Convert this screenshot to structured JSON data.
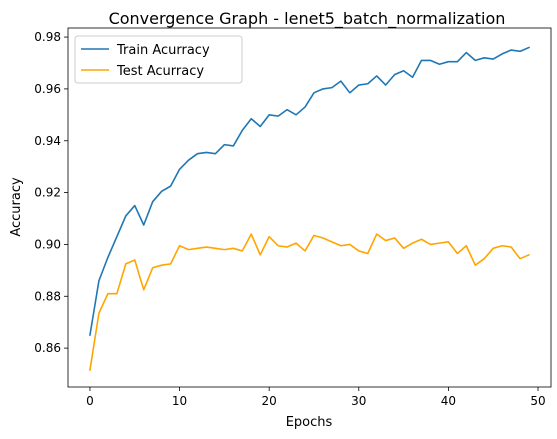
{
  "chart_data": {
    "type": "line",
    "title": "Convergence Graph - lenet5_batch_normalization",
    "xlabel": "Epochs",
    "ylabel": "Accuracy",
    "xlim": [
      -2.45,
      51.45
    ],
    "ylim": [
      0.845,
      0.9835
    ],
    "xticks": [
      0,
      10,
      20,
      30,
      40,
      50
    ],
    "yticks": [
      0.86,
      0.88,
      0.9,
      0.92,
      0.94,
      0.96,
      0.98
    ],
    "ytick_labels": [
      "0.86",
      "0.88",
      "0.90",
      "0.92",
      "0.94",
      "0.96",
      "0.98"
    ],
    "legend_position": "upper-left",
    "grid": false,
    "x": [
      0,
      1,
      2,
      3,
      4,
      5,
      6,
      7,
      8,
      9,
      10,
      11,
      12,
      13,
      14,
      15,
      16,
      17,
      18,
      19,
      20,
      21,
      22,
      23,
      24,
      25,
      26,
      27,
      28,
      29,
      30,
      31,
      32,
      33,
      34,
      35,
      36,
      37,
      38,
      39,
      40,
      41,
      42,
      43,
      44,
      45,
      46,
      47,
      48,
      49
    ],
    "series": [
      {
        "name": "Train Acurracy",
        "color": "#1f77b4",
        "values": [
          0.865,
          0.886,
          0.895,
          0.903,
          0.911,
          0.915,
          0.9075,
          0.9165,
          0.9205,
          0.9225,
          0.929,
          0.9325,
          0.935,
          0.9355,
          0.935,
          0.9385,
          0.938,
          0.944,
          0.9485,
          0.9455,
          0.95,
          0.9495,
          0.952,
          0.95,
          0.953,
          0.9585,
          0.96,
          0.9605,
          0.963,
          0.9585,
          0.9615,
          0.962,
          0.965,
          0.9615,
          0.9655,
          0.967,
          0.9645,
          0.971,
          0.971,
          0.9695,
          0.9705,
          0.9705,
          0.974,
          0.971,
          0.972,
          0.9715,
          0.9735,
          0.975,
          0.9745,
          0.976
        ]
      },
      {
        "name": "Test Acurracy",
        "color": "#ffa500",
        "values": [
          0.8515,
          0.8735,
          0.881,
          0.881,
          0.8925,
          0.894,
          0.8825,
          0.891,
          0.892,
          0.8925,
          0.8995,
          0.898,
          0.8985,
          0.899,
          0.8985,
          0.898,
          0.8985,
          0.8975,
          0.904,
          0.896,
          0.903,
          0.8995,
          0.899,
          0.9005,
          0.8975,
          0.9035,
          0.9025,
          0.901,
          0.8995,
          0.9,
          0.8975,
          0.8965,
          0.904,
          0.9015,
          0.9025,
          0.8985,
          0.9005,
          0.902,
          0.9,
          0.9005,
          0.901,
          0.8965,
          0.8995,
          0.892,
          0.8945,
          0.8985,
          0.8995,
          0.899,
          0.8945,
          0.896
        ]
      }
    ]
  }
}
